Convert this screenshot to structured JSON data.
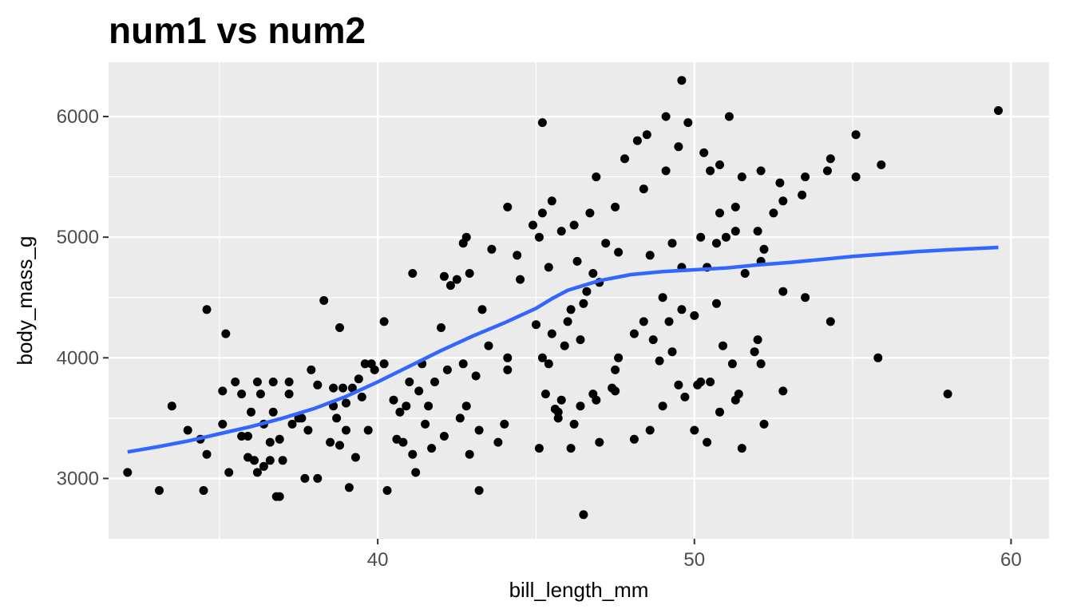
{
  "chart_data": {
    "type": "scatter",
    "title": "num1 vs num2",
    "xlabel": "bill_length_mm",
    "ylabel": "body_mass_g",
    "xlim": [
      31.5,
      61.2
    ],
    "ylim": [
      2500,
      6450
    ],
    "x_ticks": [
      40,
      50,
      60
    ],
    "x_tick_labels": [
      "40",
      "50",
      "60"
    ],
    "x_minor_ticks": [
      35,
      45,
      55
    ],
    "y_ticks": [
      3000,
      4000,
      5000,
      6000
    ],
    "y_tick_labels": [
      "3000",
      "4000",
      "5000",
      "6000"
    ],
    "y_minor_ticks": [
      3500,
      4500,
      5500
    ],
    "grid": true,
    "legend": "none",
    "colors": {
      "panel_background": "#ebebeb",
      "grid": "#ffffff",
      "points": "#000000",
      "smooth_line": "#3366ff",
      "tick_text": "#4d4d4d"
    },
    "points": [
      [
        32.1,
        3050
      ],
      [
        33.1,
        2900
      ],
      [
        33.5,
        3600
      ],
      [
        34.0,
        3400
      ],
      [
        34.4,
        3325
      ],
      [
        34.5,
        2900
      ],
      [
        34.6,
        3200
      ],
      [
        34.6,
        4400
      ],
      [
        35.1,
        3725
      ],
      [
        35.1,
        3450
      ],
      [
        35.2,
        4200
      ],
      [
        35.3,
        3050
      ],
      [
        35.5,
        3800
      ],
      [
        35.7,
        3700
      ],
      [
        35.7,
        3350
      ],
      [
        35.9,
        3175
      ],
      [
        35.9,
        3350
      ],
      [
        36.0,
        3550
      ],
      [
        36.1,
        3150
      ],
      [
        36.2,
        3050
      ],
      [
        36.2,
        3800
      ],
      [
        36.3,
        3700
      ],
      [
        36.4,
        3450
      ],
      [
        36.4,
        3100
      ],
      [
        36.6,
        3300
      ],
      [
        36.6,
        3150
      ],
      [
        36.7,
        3550
      ],
      [
        36.7,
        3800
      ],
      [
        36.8,
        2850
      ],
      [
        36.9,
        3325
      ],
      [
        36.9,
        2850
      ],
      [
        37.0,
        3150
      ],
      [
        37.2,
        3700
      ],
      [
        37.2,
        3800
      ],
      [
        37.3,
        3450
      ],
      [
        37.5,
        3500
      ],
      [
        37.6,
        3500
      ],
      [
        37.7,
        3000
      ],
      [
        37.8,
        3400
      ],
      [
        37.9,
        3900
      ],
      [
        38.1,
        3000
      ],
      [
        38.1,
        3775
      ],
      [
        38.3,
        4475
      ],
      [
        38.5,
        3300
      ],
      [
        38.6,
        3600
      ],
      [
        38.6,
        3750
      ],
      [
        38.7,
        3500
      ],
      [
        38.8,
        3275
      ],
      [
        38.8,
        4250
      ],
      [
        38.9,
        3750
      ],
      [
        39.0,
        3625
      ],
      [
        39.0,
        3400
      ],
      [
        39.1,
        2925
      ],
      [
        39.2,
        3750
      ],
      [
        39.3,
        3175
      ],
      [
        39.4,
        3825
      ],
      [
        39.5,
        3675
      ],
      [
        39.6,
        3950
      ],
      [
        39.7,
        3400
      ],
      [
        39.8,
        3950
      ],
      [
        39.9,
        3900
      ],
      [
        40.2,
        3950
      ],
      [
        40.3,
        2900
      ],
      [
        40.5,
        3650
      ],
      [
        40.6,
        3325
      ],
      [
        40.7,
        3550
      ],
      [
        40.8,
        3300
      ],
      [
        40.9,
        3600
      ],
      [
        41.0,
        3800
      ],
      [
        41.1,
        3200
      ],
      [
        41.2,
        3050
      ],
      [
        41.3,
        3725
      ],
      [
        41.4,
        3950
      ],
      [
        41.5,
        3450
      ],
      [
        41.6,
        3600
      ],
      [
        41.7,
        3250
      ],
      [
        41.8,
        3800
      ],
      [
        42.0,
        4250
      ],
      [
        42.1,
        4675
      ],
      [
        42.2,
        3900
      ],
      [
        42.3,
        4600
      ],
      [
        42.5,
        4650
      ],
      [
        42.6,
        3500
      ],
      [
        42.7,
        3950
      ],
      [
        42.8,
        3600
      ],
      [
        42.9,
        3200
      ],
      [
        43.1,
        3850
      ],
      [
        43.2,
        3400
      ],
      [
        43.5,
        4100
      ],
      [
        43.8,
        3300
      ],
      [
        44.0,
        3450
      ],
      [
        44.1,
        3900
      ],
      [
        44.5,
        4650
      ],
      [
        45.0,
        4275
      ],
      [
        45.2,
        4000
      ],
      [
        45.3,
        3700
      ],
      [
        45.5,
        4200
      ],
      [
        45.6,
        3575
      ],
      [
        45.7,
        3550
      ],
      [
        45.9,
        4100
      ],
      [
        46.0,
        4300
      ],
      [
        46.1,
        4400
      ],
      [
        46.4,
        4150
      ],
      [
        46.5,
        4450
      ],
      [
        46.6,
        4550
      ],
      [
        46.8,
        4700
      ],
      [
        47.0,
        4625
      ],
      [
        47.4,
        3750
      ],
      [
        47.6,
        4000
      ],
      [
        48.1,
        4200
      ],
      [
        48.4,
        4300
      ],
      [
        48.7,
        4150
      ],
      [
        49.0,
        4500
      ],
      [
        49.2,
        4300
      ],
      [
        49.6,
        4400
      ],
      [
        50.0,
        4350
      ],
      [
        50.4,
        4750
      ],
      [
        50.7,
        4950
      ],
      [
        51.0,
        5000
      ],
      [
        51.3,
        5050
      ],
      [
        51.6,
        4700
      ],
      [
        52.0,
        5050
      ],
      [
        52.2,
        4900
      ],
      [
        52.5,
        5200
      ],
      [
        52.8,
        5300
      ],
      [
        53.4,
        5350
      ],
      [
        54.2,
        5550
      ],
      [
        55.1,
        5500
      ],
      [
        55.9,
        5600
      ],
      [
        40.2,
        4300
      ],
      [
        41.1,
        4700
      ],
      [
        42.1,
        3350
      ],
      [
        43.2,
        2900
      ],
      [
        44.1,
        4000
      ],
      [
        45.1,
        5000
      ],
      [
        46.2,
        5100
      ],
      [
        47.5,
        5250
      ],
      [
        48.2,
        5800
      ],
      [
        49.1,
        6000
      ],
      [
        49.5,
        5750
      ],
      [
        50.2,
        5000
      ],
      [
        50.8,
        5200
      ],
      [
        51.1,
        6000
      ],
      [
        52.7,
        5450
      ],
      [
        53.5,
        5500
      ],
      [
        54.3,
        5650
      ],
      [
        55.1,
        5850
      ],
      [
        59.6,
        6050
      ],
      [
        49.6,
        6300
      ],
      [
        45.2,
        5950
      ],
      [
        48.5,
        5850
      ],
      [
        49.8,
        5950
      ],
      [
        50.3,
        5700
      ],
      [
        45.5,
        5300
      ],
      [
        46.9,
        5500
      ],
      [
        47.8,
        5650
      ],
      [
        48.4,
        5400
      ],
      [
        49.1,
        5550
      ],
      [
        50.5,
        5550
      ],
      [
        51.5,
        5500
      ],
      [
        52.1,
        5550
      ],
      [
        45.4,
        4750
      ],
      [
        46.3,
        4800
      ],
      [
        47.2,
        4950
      ],
      [
        48.6,
        4850
      ],
      [
        49.3,
        4950
      ],
      [
        50.8,
        5600
      ],
      [
        51.3,
        5250
      ],
      [
        46.5,
        2700
      ],
      [
        45.1,
        3250
      ],
      [
        46.1,
        3250
      ],
      [
        47.0,
        3300
      ],
      [
        48.1,
        3325
      ],
      [
        48.6,
        3400
      ],
      [
        49.7,
        3675
      ],
      [
        50.0,
        3400
      ],
      [
        50.4,
        3300
      ],
      [
        50.8,
        3550
      ],
      [
        51.5,
        3250
      ],
      [
        52.2,
        3450
      ],
      [
        52.8,
        3725
      ],
      [
        45.8,
        3650
      ],
      [
        46.8,
        3700
      ],
      [
        47.5,
        3900
      ],
      [
        48.9,
        3975
      ],
      [
        49.3,
        4050
      ],
      [
        50.5,
        3800
      ],
      [
        51.2,
        3950
      ],
      [
        51.9,
        4050
      ],
      [
        52.0,
        4150
      ],
      [
        52.1,
        3950
      ],
      [
        49.0,
        3600
      ],
      [
        49.5,
        3775
      ],
      [
        50.1,
        3775
      ],
      [
        51.3,
        3650
      ],
      [
        51.4,
        3700
      ],
      [
        50.2,
        3800
      ],
      [
        50.9,
        4100
      ],
      [
        45.4,
        3950
      ],
      [
        45.7,
        3500
      ],
      [
        46.4,
        3600
      ],
      [
        46.9,
        3650
      ],
      [
        47.5,
        3725
      ],
      [
        46.2,
        3450
      ],
      [
        53.5,
        4500
      ],
      [
        54.3,
        4300
      ],
      [
        55.8,
        4000
      ],
      [
        58.0,
        3700
      ],
      [
        52.8,
        4550
      ],
      [
        52.1,
        4800
      ],
      [
        49.6,
        4750
      ],
      [
        50.7,
        4450
      ],
      [
        47.6,
        4875
      ],
      [
        46.7,
        5200
      ],
      [
        45.8,
        5050
      ],
      [
        44.9,
        5100
      ],
      [
        43.3,
        4400
      ],
      [
        42.9,
        4700
      ],
      [
        42.7,
        4950
      ],
      [
        42.8,
        5000
      ],
      [
        43.6,
        4900
      ],
      [
        44.4,
        4850
      ],
      [
        45.2,
        5200
      ],
      [
        44.1,
        5250
      ]
    ],
    "smooth_line": [
      [
        32.1,
        3220
      ],
      [
        33.0,
        3260
      ],
      [
        34.0,
        3310
      ],
      [
        35.0,
        3370
      ],
      [
        36.0,
        3430
      ],
      [
        37.0,
        3500
      ],
      [
        38.0,
        3580
      ],
      [
        39.0,
        3680
      ],
      [
        40.0,
        3800
      ],
      [
        41.0,
        3930
      ],
      [
        42.0,
        4060
      ],
      [
        43.0,
        4180
      ],
      [
        44.0,
        4290
      ],
      [
        45.0,
        4410
      ],
      [
        45.5,
        4490
      ],
      [
        46.0,
        4560
      ],
      [
        47.0,
        4640
      ],
      [
        48.0,
        4690
      ],
      [
        49.0,
        4715
      ],
      [
        50.0,
        4730
      ],
      [
        51.0,
        4745
      ],
      [
        52.0,
        4770
      ],
      [
        53.0,
        4790
      ],
      [
        54.0,
        4815
      ],
      [
        55.0,
        4840
      ],
      [
        56.0,
        4860
      ],
      [
        57.0,
        4880
      ],
      [
        58.0,
        4895
      ],
      [
        59.6,
        4915
      ]
    ]
  }
}
